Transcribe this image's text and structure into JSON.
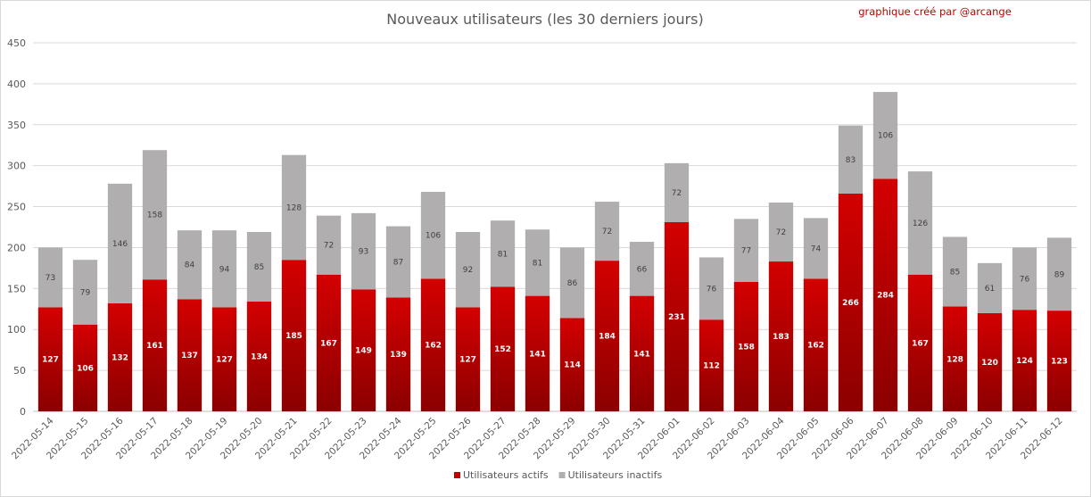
{
  "chart_data": {
    "type": "bar",
    "stacked": true,
    "title": "Nouveaux utilisateurs  (les 30 derniers  jours)",
    "annotation": "graphique créé par @arcange",
    "categories": [
      "2022-05-14",
      "2022-05-15",
      "2022-05-16",
      "2022-05-17",
      "2022-05-18",
      "2022-05-19",
      "2022-05-20",
      "2022-05-21",
      "2022-05-22",
      "2022-05-23",
      "2022-05-24",
      "2022-05-25",
      "2022-05-26",
      "2022-05-27",
      "2022-05-28",
      "2022-05-29",
      "2022-05-30",
      "2022-05-31",
      "2022-06-01",
      "2022-06-02",
      "2022-06-03",
      "2022-06-04",
      "2022-06-05",
      "2022-06-06",
      "2022-06-07",
      "2022-06-08",
      "2022-06-09",
      "2022-06-10",
      "2022-06-11",
      "2022-06-12"
    ],
    "series": [
      {
        "name": "Utilisateurs actifs",
        "color": "#c00000",
        "values": [
          127,
          106,
          132,
          161,
          137,
          127,
          134,
          185,
          167,
          149,
          139,
          162,
          127,
          152,
          141,
          114,
          184,
          141,
          231,
          112,
          158,
          183,
          162,
          266,
          284,
          167,
          128,
          120,
          124,
          123
        ]
      },
      {
        "name": "Utilisateurs inactifs",
        "color": "#b0aeae",
        "values": [
          73,
          79,
          146,
          158,
          84,
          94,
          85,
          128,
          72,
          93,
          87,
          106,
          92,
          81,
          81,
          86,
          72,
          66,
          72,
          76,
          77,
          72,
          74,
          83,
          106,
          126,
          85,
          61,
          76,
          89
        ]
      }
    ],
    "ylim": [
      0,
      450
    ],
    "yticks": [
      "0",
      "50",
      "100",
      "150",
      "200",
      "250",
      "300",
      "350",
      "400",
      "450"
    ],
    "grid": true,
    "legend_position": "bottom"
  }
}
